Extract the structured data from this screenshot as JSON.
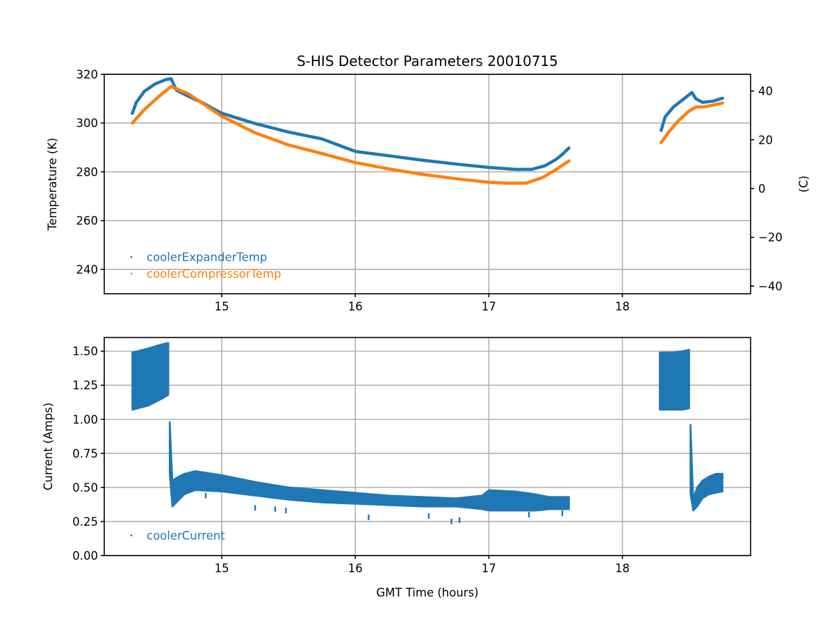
{
  "chart_data": [
    {
      "type": "scatter",
      "title": "S-HIS Detector Parameters 20010715",
      "xlabel": "",
      "ylabel": "Temperature (K)",
      "ylabel_right": "(C)",
      "xlim": [
        14.12,
        18.96
      ],
      "ylim": [
        230,
        320
      ],
      "ylim_right_celsius": [
        -43.15,
        46.85
      ],
      "xticks": [
        "15",
        "16",
        "17",
        "18"
      ],
      "xtick_values": [
        15,
        16,
        17,
        18
      ],
      "yticks": [
        "240",
        "260",
        "280",
        "300",
        "320"
      ],
      "ytick_values": [
        240,
        260,
        280,
        300,
        320
      ],
      "yticks_right": [
        "−40",
        "−20",
        "0",
        "20",
        "40"
      ],
      "ytick_right_values": [
        -40,
        -20,
        0,
        20,
        40
      ],
      "grid": true,
      "legend_position": "lower-left",
      "series": [
        {
          "name": "coolerExpanderTemp",
          "color": "#1f77b4",
          "segments": [
            {
              "x": [
                14.33,
                14.36,
                14.42,
                14.5,
                14.58,
                14.62,
                14.66,
                14.75,
                14.85,
                15.0,
                15.25,
                15.5,
                15.75,
                16.0,
                16.25,
                16.5,
                16.75,
                17.0,
                17.2,
                17.32,
                17.42,
                17.5,
                17.55,
                17.6
              ],
              "y": [
                304,
                308.5,
                313,
                316,
                317.8,
                318.2,
                313.5,
                311,
                308.5,
                304,
                299.8,
                296.3,
                293.5,
                288.4,
                286.6,
                284.8,
                283.2,
                281.8,
                281,
                281,
                282.5,
                285,
                287.2,
                289.8
              ]
            },
            {
              "x": [
                18.29,
                18.32,
                18.38,
                18.45,
                18.52,
                18.55,
                18.6,
                18.68,
                18.75
              ],
              "y": [
                297,
                302.5,
                306.5,
                309.5,
                312.5,
                310,
                308.5,
                309,
                310.2
              ]
            }
          ]
        },
        {
          "name": "coolerCompressorTemp",
          "color": "#ff7f0e",
          "segments": [
            {
              "x": [
                14.33,
                14.42,
                14.52,
                14.62,
                14.75,
                15.0,
                15.25,
                15.5,
                15.75,
                16.0,
                16.25,
                16.5,
                16.75,
                17.0,
                17.15,
                17.28,
                17.4,
                17.5,
                17.6
              ],
              "y": [
                300,
                305.5,
                310.5,
                315,
                312,
                302.8,
                296,
                291,
                287.5,
                283.8,
                281.2,
                279,
                277.2,
                275.7,
                275.3,
                275.4,
                277.6,
                280.8,
                284.5
              ]
            },
            {
              "x": [
                18.29,
                18.35,
                18.42,
                18.5,
                18.55,
                18.62,
                18.75
              ],
              "y": [
                292,
                296.5,
                301,
                305,
                306.5,
                306.7,
                308.2
              ]
            }
          ]
        }
      ]
    },
    {
      "type": "scatter",
      "title": "",
      "xlabel": "GMT Time (hours)",
      "ylabel": "Current (Amps)",
      "xlim": [
        14.12,
        18.96
      ],
      "ylim": [
        0,
        1.6
      ],
      "xticks": [
        "15",
        "16",
        "17",
        "18"
      ],
      "xtick_values": [
        15,
        16,
        17,
        18
      ],
      "yticks": [
        "0.00",
        "0.25",
        "0.50",
        "0.75",
        "1.00",
        "1.25",
        "1.50"
      ],
      "ytick_values": [
        0,
        0.25,
        0.5,
        0.75,
        1.0,
        1.25,
        1.5
      ],
      "grid": true,
      "legend_position": "lower-left",
      "series": [
        {
          "name": "coolerCurrent",
          "color": "#1f77b4",
          "bands": [
            {
              "x": [
                14.33,
                14.45,
                14.55,
                14.6
              ],
              "upper": [
                1.49,
                1.52,
                1.55,
                1.56
              ],
              "lower": [
                1.07,
                1.1,
                1.15,
                1.18
              ]
            },
            {
              "x": [
                14.61,
                14.63,
                14.66,
                14.72,
                14.8,
                15.0,
                15.25,
                15.5,
                15.75,
                16.0,
                16.25,
                16.5,
                16.75,
                16.95,
                17.0,
                17.2,
                17.35,
                17.45,
                17.6
              ],
              "upper": [
                0.98,
                0.55,
                0.57,
                0.6,
                0.62,
                0.59,
                0.54,
                0.5,
                0.48,
                0.46,
                0.44,
                0.43,
                0.42,
                0.44,
                0.48,
                0.47,
                0.45,
                0.43,
                0.43
              ],
              "lower": [
                0.6,
                0.36,
                0.39,
                0.45,
                0.48,
                0.47,
                0.44,
                0.41,
                0.39,
                0.38,
                0.37,
                0.36,
                0.36,
                0.34,
                0.33,
                0.33,
                0.33,
                0.34,
                0.34
              ]
            },
            {
              "x": [
                18.28,
                18.38,
                18.45,
                18.5
              ],
              "upper": [
                1.49,
                1.49,
                1.5,
                1.51
              ],
              "lower": [
                1.07,
                1.07,
                1.07,
                1.08
              ]
            },
            {
              "x": [
                18.51,
                18.53,
                18.56,
                18.6,
                18.65,
                18.7,
                18.75
              ],
              "upper": [
                0.96,
                0.42,
                0.5,
                0.55,
                0.58,
                0.6,
                0.6
              ],
              "lower": [
                0.45,
                0.33,
                0.36,
                0.42,
                0.45,
                0.46,
                0.47
              ]
            }
          ],
          "outliers": {
            "x": [
              14.88,
              15.25,
              15.4,
              15.48,
              16.1,
              16.55,
              16.72,
              16.78,
              17.3,
              17.55
            ],
            "y": [
              0.44,
              0.35,
              0.34,
              0.33,
              0.28,
              0.29,
              0.25,
              0.26,
              0.3,
              0.31
            ]
          }
        }
      ]
    }
  ]
}
